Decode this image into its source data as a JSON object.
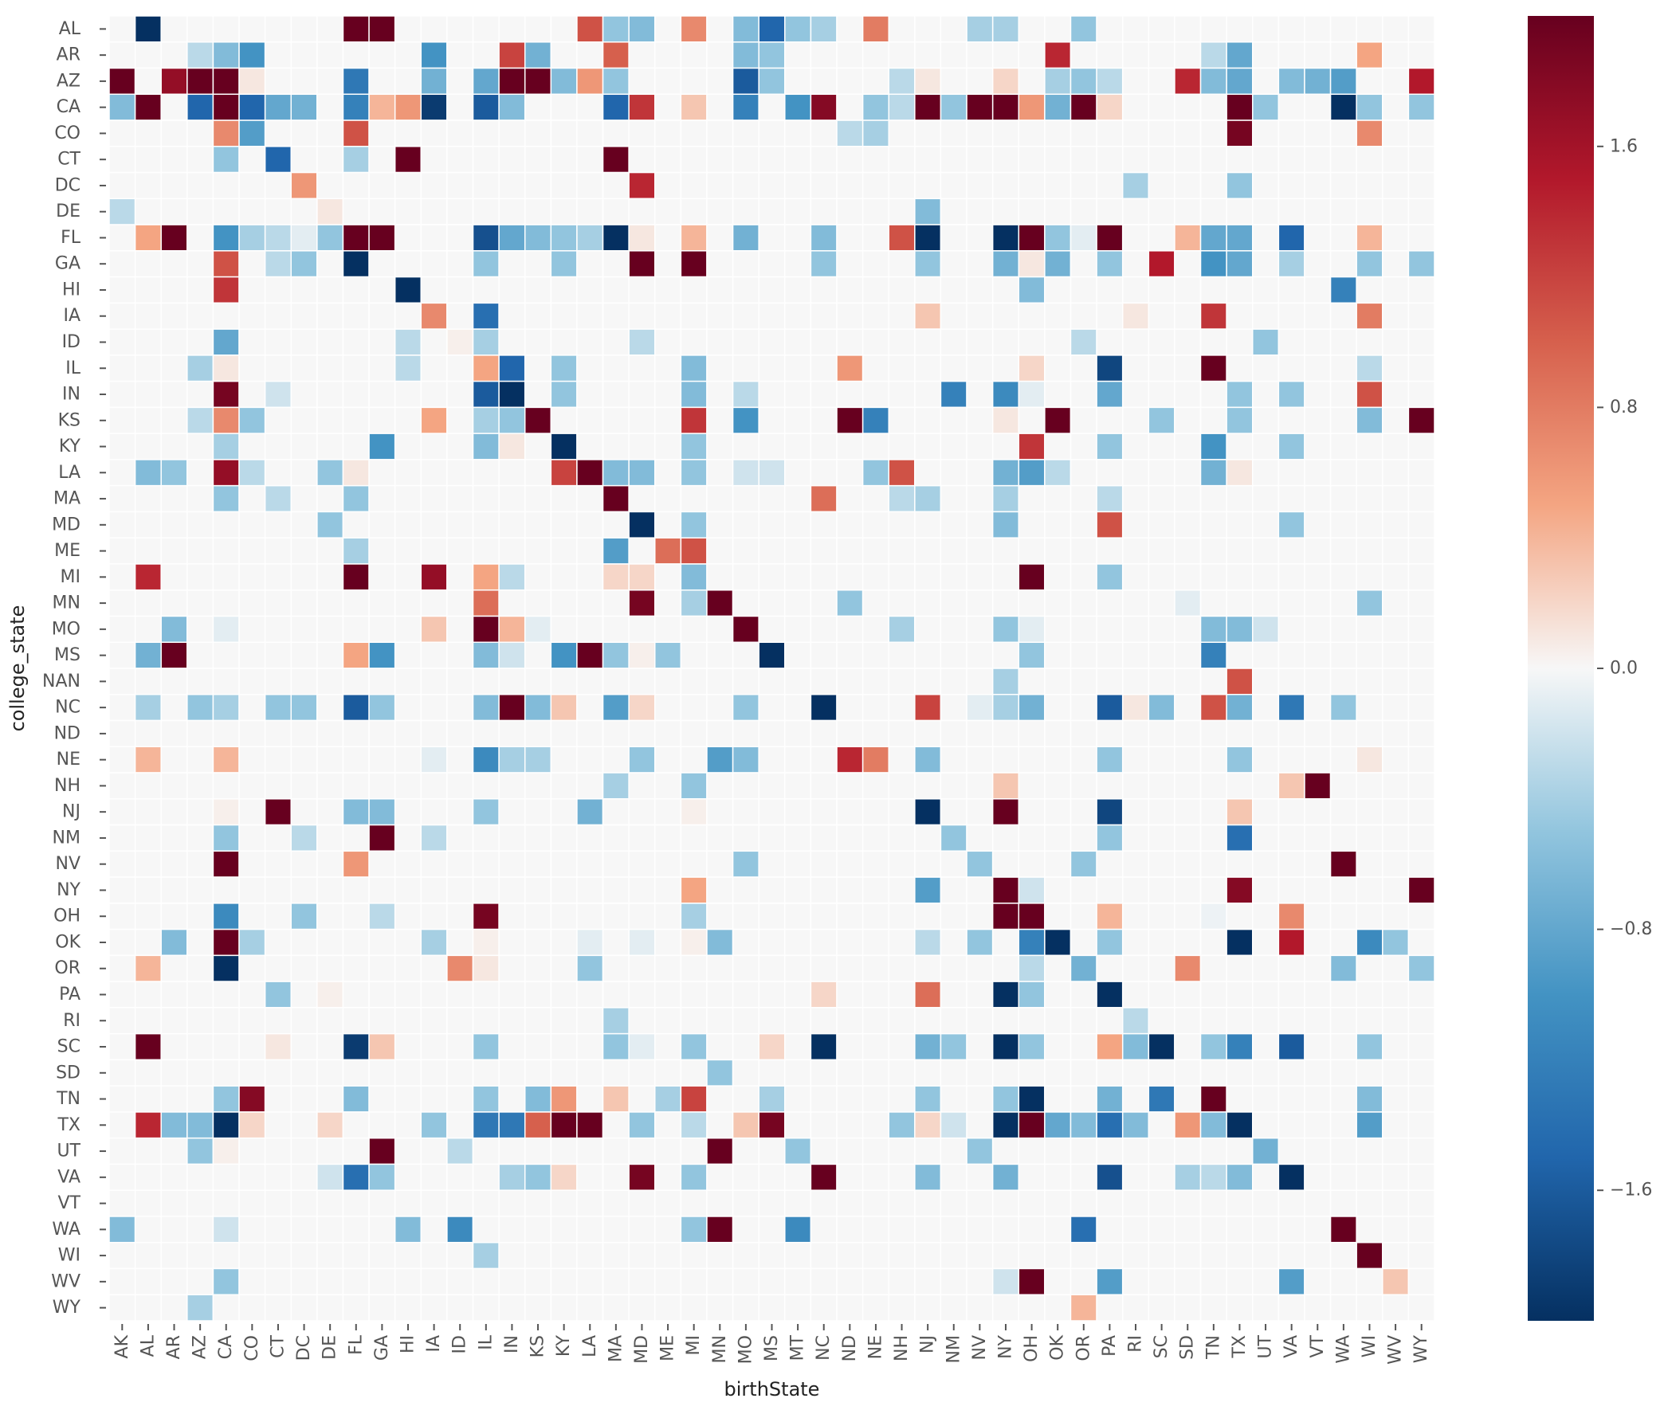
{
  "chart_data": {
    "type": "heatmap",
    "xlabel": "birthState",
    "ylabel": "college_state",
    "x_categories": [
      "AK",
      "AL",
      "AR",
      "AZ",
      "CA",
      "CO",
      "CT",
      "DC",
      "DE",
      "FL",
      "GA",
      "HI",
      "IA",
      "ID",
      "IL",
      "IN",
      "KS",
      "KY",
      "LA",
      "MA",
      "MD",
      "ME",
      "MI",
      "MN",
      "MO",
      "MS",
      "MT",
      "NC",
      "ND",
      "NE",
      "NH",
      "NJ",
      "NM",
      "NV",
      "NY",
      "OH",
      "OK",
      "OR",
      "PA",
      "RI",
      "SC",
      "SD",
      "TN",
      "TX",
      "UT",
      "VA",
      "VT",
      "WA",
      "WI",
      "WV",
      "WY"
    ],
    "y_categories": [
      "AL",
      "AR",
      "AZ",
      "CA",
      "CO",
      "CT",
      "DC",
      "DE",
      "FL",
      "GA",
      "HI",
      "IA",
      "ID",
      "IL",
      "IN",
      "KS",
      "KY",
      "LA",
      "MA",
      "MD",
      "ME",
      "MI",
      "MN",
      "MO",
      "MS",
      "NAN",
      "NC",
      "ND",
      "NE",
      "NH",
      "NJ",
      "NM",
      "NV",
      "NY",
      "OH",
      "OK",
      "OR",
      "PA",
      "RI",
      "SC",
      "SD",
      "TN",
      "TX",
      "UT",
      "VA",
      "VT",
      "WA",
      "WI",
      "WV",
      "WY"
    ],
    "vmin": -2.0,
    "vmax": 2.0,
    "colormap": "RdBu_r",
    "colorbar_ticks": [
      -1.6,
      -0.8,
      0.0,
      0.8,
      1.6
    ],
    "colorbar_tick_labels": [
      "−1.6",
      "−0.8",
      "0.0",
      "0.8",
      "1.6"
    ],
    "grid": false,
    "cell_border_color": "#ffffff",
    "cells": {
      "AL": {
        "AL": -2.2,
        "FL": 2.2,
        "GA": 2.2,
        "LA": 1.1,
        "MA": -0.5,
        "MD": -0.6,
        "MI": 0.7,
        "MO": -0.6,
        "MS": -1.5,
        "MT": -0.5,
        "NC": -0.4,
        "NE": 0.8,
        "NV": -0.4,
        "NY": -0.4,
        "OR": -0.5
      },
      "AR": {
        "AZ": -0.3,
        "CA": -0.6,
        "CO": -1.0,
        "IA": -1.0,
        "IN": 1.2,
        "KS": -0.7,
        "MA": 1.0,
        "MO": -0.6,
        "MS": -0.5,
        "OK": 1.4,
        "TN": -0.3,
        "TX": -0.8,
        "WI": 0.5
      },
      "AZ": {
        "AK": 2.2,
        "AR": 1.7,
        "AZ": 2.2,
        "CA": 2.2,
        "CO": 0.1,
        "FL": -1.3,
        "IA": -0.7,
        "IL": -0.8,
        "IN": 2.2,
        "KS": 2.2,
        "KY": -0.6,
        "LA": 0.6,
        "MA": -0.5,
        "MO": -1.6,
        "MS": -0.5,
        "NH": -0.3,
        "NJ": 0.1,
        "NY": 0.2,
        "OK": -0.4,
        "OR": -0.5,
        "PA": -0.3,
        "SD": 1.4,
        "TN": -0.6,
        "TX": -0.8,
        "VA": -0.6,
        "VT": -0.7,
        "WA": -0.9,
        "WY": 1.5
      },
      "CA": {
        "AK": -0.6,
        "AL": 2.2,
        "AZ": -1.5,
        "CA": 2.2,
        "CO": -1.5,
        "CT": -0.8,
        "DC": -0.7,
        "FL": -1.2,
        "GA": 0.4,
        "HI": 0.6,
        "IA": -1.9,
        "IL": -1.6,
        "IN": -0.6,
        "MA": -1.5,
        "MD": 1.3,
        "MI": 0.3,
        "MO": -1.2,
        "MT": -1.0,
        "NC": 1.8,
        "NE": -0.5,
        "NH": -0.3,
        "NJ": 2.2,
        "NM": -0.5,
        "NV": 2.2,
        "NY": 2.2,
        "OH": 0.6,
        "OK": -0.7,
        "OR": 2.2,
        "PA": 0.2,
        "TX": 2.2,
        "UT": -0.5,
        "WA": -2.2,
        "WI": -0.5,
        "WY": -0.5
      },
      "CO": {
        "CA": 0.7,
        "CO": -0.9,
        "FL": 1.1,
        "ND": -0.3,
        "NE": -0.4,
        "TX": 1.9,
        "WI": 0.7
      },
      "CT": {
        "CA": -0.5,
        "CT": -1.5,
        "FL": -0.4,
        "HI": 2.2,
        "MA": 2.2
      },
      "DC": {
        "DC": 0.6,
        "MD": 1.4,
        "RI": -0.4,
        "TX": -0.5
      },
      "DE": {
        "AK": -0.3,
        "DE": 0.1,
        "NJ": -0.6
      },
      "FL": {
        "AL": 0.5,
        "AR": 2.2,
        "CA": -1.0,
        "CO": -0.4,
        "CT": -0.3,
        "DC": -0.1,
        "DE": -0.5,
        "FL": 2.2,
        "GA": 2.2,
        "IL": -1.7,
        "IN": -0.8,
        "KS": -0.6,
        "KY": -0.5,
        "LA": -0.4,
        "MA": -2.2,
        "MD": 0.1,
        "MI": 0.4,
        "MO": -0.7,
        "NC": -0.6,
        "NH": 1.1,
        "NJ": -2.2,
        "NY": -2.2,
        "OH": 2.2,
        "OK": -0.5,
        "OR": -0.1,
        "PA": 2.2,
        "SD": 0.4,
        "TN": -0.8,
        "TX": -0.8,
        "VA": -1.5,
        "WI": 0.4
      },
      "GA": {
        "CA": 1.1,
        "CT": -0.3,
        "DC": -0.5,
        "FL": -2.2,
        "IL": -0.5,
        "KY": -0.5,
        "MD": 2.2,
        "MI": 2.0,
        "NC": -0.5,
        "NJ": -0.5,
        "NY": -0.7,
        "OH": 0.1,
        "OK": -0.7,
        "PA": -0.5,
        "SC": 1.5,
        "TN": -1.0,
        "TX": -0.8,
        "VA": -0.4,
        "WI": -0.5,
        "WY": -0.5
      },
      "HI": {
        "CA": 1.3,
        "HI": -2.2,
        "OH": -0.6,
        "WA": -1.2
      },
      "IA": {
        "IA": 0.7,
        "IL": -1.4,
        "NJ": 0.3,
        "RI": 0.1,
        "TN": 1.3,
        "WI": 0.8
      },
      "ID": {
        "CA": -0.8,
        "HI": -0.3,
        "ID": 0.05,
        "IL": -0.4,
        "MD": -0.3,
        "OR": -0.3,
        "UT": -0.5
      },
      "IL": {
        "AZ": -0.4,
        "CA": 0.1,
        "HI": -0.3,
        "IL": 0.5,
        "IN": -1.5,
        "KY": -0.5,
        "MI": -0.6,
        "ND": 0.6,
        "OH": 0.2,
        "PA": -1.8,
        "TN": 2.2,
        "WI": -0.3
      },
      "IN": {
        "CA": 1.9,
        "CT": -0.2,
        "IL": -1.6,
        "IN": -2.2,
        "KY": -0.5,
        "MI": -0.6,
        "MO": -0.3,
        "NM": -1.2,
        "NY": -1.1,
        "OH": -0.1,
        "PA": -0.8,
        "TX": -0.5,
        "VA": -0.5,
        "WI": 1.1
      },
      "KS": {
        "AZ": -0.3,
        "CA": 0.7,
        "CO": -0.5,
        "IA": 0.5,
        "IL": -0.4,
        "IN": -0.5,
        "KS": 2.2,
        "MI": 1.3,
        "MO": -1.0,
        "ND": 2.2,
        "NE": -1.2,
        "NY": 0.1,
        "OK": 2.2,
        "SC": -0.5,
        "TX": -0.5,
        "WI": -0.6,
        "WY": 2.2
      },
      "KY": {
        "CA": -0.4,
        "GA": -1.0,
        "IL": -0.6,
        "IN": 0.1,
        "KY": -2.2,
        "MI": -0.5,
        "OH": 1.3,
        "PA": -0.5,
        "TN": -1.0,
        "VA": -0.5
      },
      "LA": {
        "AL": -0.6,
        "AR": -0.5,
        "CA": 1.7,
        "CO": -0.3,
        "DE": -0.5,
        "FL": 0.1,
        "KY": 1.2,
        "LA": 2.2,
        "MA": -0.6,
        "MD": -0.6,
        "MI": -0.5,
        "MO": -0.2,
        "MS": -0.2,
        "NE": -0.5,
        "NH": 1.1,
        "NY": -0.7,
        "OH": -0.9,
        "OK": -0.3,
        "TN": -0.7,
        "TX": 0.1
      },
      "MA": {
        "CA": -0.5,
        "CT": -0.3,
        "FL": -0.5,
        "MA": 2.2,
        "NC": 0.9,
        "NH": -0.3,
        "NJ": -0.4,
        "NY": -0.4,
        "PA": -0.3
      },
      "MD": {
        "DE": -0.5,
        "MD": -2.2,
        "MI": -0.5,
        "NY": -0.6,
        "PA": 1.1,
        "VA": -0.5
      },
      "ME": {
        "FL": -0.4,
        "MA": -0.9,
        "ME": 0.9,
        "MI": 1.1
      },
      "MI": {
        "AL": 1.4,
        "FL": 2.2,
        "IA": 1.7,
        "IL": 0.5,
        "IN": -0.3,
        "MA": 0.2,
        "MD": 0.2,
        "MI": -0.6,
        "OH": 2.2,
        "PA": -0.5
      },
      "MN": {
        "IL": 0.9,
        "MD": 1.9,
        "MI": -0.4,
        "MN": 2.2,
        "ND": -0.5,
        "SD": -0.1,
        "WI": -0.5
      },
      "MO": {
        "AR": -0.6,
        "CA": -0.1,
        "IA": 0.3,
        "IL": 2.2,
        "IN": 0.4,
        "KS": -0.1,
        "MO": 2.2,
        "NH": -0.4,
        "NY": -0.5,
        "OH": -0.1,
        "TX": -0.6,
        "TN": -0.6,
        "UT": -0.2
      },
      "MS": {
        "AL": -0.7,
        "AR": 2.2,
        "FL": 0.5,
        "GA": -1.0,
        "IL": -0.6,
        "IN": -0.2,
        "KY": -1.0,
        "LA": 2.2,
        "MA": -0.5,
        "MD": 0.05,
        "ME": -0.5,
        "MS": -2.2,
        "OH": -0.5,
        "TN": -1.2
      },
      "NAN": {
        "NY": -0.4,
        "TX": 1.1
      },
      "NC": {
        "AL": -0.4,
        "AZ": -0.5,
        "CA": -0.4,
        "CT": -0.5,
        "DC": -0.5,
        "FL": -1.6,
        "GA": -0.5,
        "IL": -0.6,
        "IN": 2.2,
        "KS": -0.6,
        "KY": 0.3,
        "MA": -0.9,
        "MD": 0.2,
        "MO": -0.5,
        "NC": -2.2,
        "NJ": 1.2,
        "NV": -0.1,
        "NY": -0.4,
        "OH": -0.7,
        "PA": -1.6,
        "RI": 0.1,
        "SC": -0.6,
        "TN": 1.1,
        "TX": -0.7,
        "VA": -1.3,
        "WA": -0.5
      },
      "ND": {},
      "NE": {
        "AL": 0.4,
        "CA": 0.4,
        "IA": -0.1,
        "IL": -1.1,
        "IN": -0.4,
        "KS": -0.4,
        "MD": -0.5,
        "MN": -0.9,
        "MO": -0.6,
        "ND": 1.4,
        "NE": 0.8,
        "NJ": -0.6,
        "PA": -0.5,
        "TX": -0.5,
        "WI": 0.1
      },
      "NH": {
        "MA": -0.4,
        "MI": -0.5,
        "NY": 0.3,
        "VA": 0.3,
        "VT": 2.2
      },
      "NJ": {
        "CA": 0.05,
        "CT": 2.2,
        "FL": -0.6,
        "GA": -0.6,
        "IL": -0.5,
        "LA": -0.7,
        "MI": 0.05,
        "NJ": -2.2,
        "NY": 2.2,
        "PA": -1.8,
        "TX": 0.3
      },
      "NM": {
        "CA": -0.5,
        "DC": -0.3,
        "GA": 2.2,
        "IA": -0.3,
        "NM": -0.5,
        "PA": -0.5,
        "TX": -1.4
      },
      "NV": {
        "CA": 2.2,
        "FL": 0.6,
        "MO": -0.5,
        "NV": -0.5,
        "OR": -0.5,
        "WA": 2.2
      },
      "NY": {
        "MI": 0.5,
        "NJ": -0.9,
        "NY": 2.2,
        "OH": -0.2,
        "TX": 1.8,
        "WY": 2.2
      },
      "OH": {
        "CA": -1.1,
        "DC": -0.5,
        "GA": -0.3,
        "IL": 1.9,
        "MI": -0.4,
        "NY": 2.2,
        "OH": 2.2,
        "PA": 0.4,
        "TN": -0.05,
        "VA": 0.7
      },
      "OK": {
        "AR": -0.6,
        "CA": 2.2,
        "CO": -0.4,
        "IA": -0.4,
        "IL": 0.05,
        "LA": -0.1,
        "MD": -0.1,
        "MI": 0.05,
        "MN": -0.6,
        "NJ": -0.3,
        "NV": -0.5,
        "OH": -1.2,
        "OK": -2.2,
        "PA": -0.5,
        "TX": -2.2,
        "VA": 1.5,
        "WI": -1.1,
        "WV": -0.5
      },
      "OR": {
        "AL": 0.4,
        "CA": -2.2,
        "ID": 0.7,
        "IL": 0.1,
        "LA": -0.5,
        "OH": -0.3,
        "OR": -0.7,
        "SD": 0.7,
        "WA": -0.6,
        "WY": -0.5
      },
      "PA": {
        "CT": -0.5,
        "DE": 0.05,
        "NC": 0.2,
        "NJ": 0.9,
        "NY": -2.2,
        "OH": -0.5,
        "PA": -2.2
      },
      "RI": {
        "MA": -0.4,
        "RI": -0.3
      },
      "SC": {
        "AL": 2.2,
        "CT": 0.1,
        "FL": -1.9,
        "GA": 0.3,
        "IL": -0.5,
        "MA": -0.5,
        "MD": -0.1,
        "MI": -0.5,
        "MS": 0.2,
        "NC": -2.2,
        "NJ": -0.7,
        "NM": -0.5,
        "NY": -2.2,
        "OH": -0.5,
        "PA": 0.5,
        "RI": -0.6,
        "SC": -2.2,
        "TN": -0.5,
        "TX": -1.2,
        "VA": -1.6,
        "WI": -0.5
      },
      "SD": {
        "MN": -0.5
      },
      "TN": {
        "CA": -0.5,
        "CO": 1.8,
        "FL": -0.6,
        "IL": -0.5,
        "KS": -0.6,
        "KY": 0.6,
        "MA": 0.3,
        "ME": -0.4,
        "MI": 1.2,
        "MS": -0.4,
        "NJ": -0.5,
        "NY": -0.5,
        "OH": -2.2,
        "PA": -0.7,
        "SC": -1.3,
        "TN": 2.2,
        "WI": -0.6
      },
      "TX": {
        "AL": 1.4,
        "AR": -0.6,
        "AZ": -0.6,
        "CA": -2.2,
        "CO": 0.2,
        "DE": 0.2,
        "IA": -0.5,
        "IL": -1.3,
        "IN": -1.3,
        "KS": 1.0,
        "KY": 2.2,
        "LA": 2.2,
        "MD": -0.5,
        "MI": -0.3,
        "MO": 0.3,
        "MS": 1.9,
        "NH": -0.5,
        "NJ": 0.2,
        "NM": -0.2,
        "NY": -2.2,
        "OH": 2.2,
        "OK": -0.8,
        "OR": -0.6,
        "PA": -1.4,
        "RI": -0.6,
        "SD": 0.6,
        "TN": -0.6,
        "TX": -2.2,
        "WI": -0.9
      },
      "UT": {
        "AZ": -0.5,
        "CA": 0.05,
        "GA": 2.2,
        "ID": -0.3,
        "MN": 2.2,
        "MT": -0.5,
        "NV": -0.5,
        "UT": -0.7
      },
      "VA": {
        "DE": -0.2,
        "FL": -1.4,
        "GA": -0.5,
        "IN": -0.4,
        "KS": -0.5,
        "KY": 0.2,
        "MD": 1.9,
        "MI": -0.5,
        "NC": 2.2,
        "NJ": -0.6,
        "NY": -0.7,
        "PA": -1.7,
        "SD": -0.4,
        "TN": -0.3,
        "TX": -0.6,
        "VA": -2.2
      },
      "VT": {},
      "WA": {
        "AK": -0.6,
        "CA": -0.2,
        "HI": -0.6,
        "ID": -1.1,
        "MI": -0.5,
        "MN": 2.2,
        "MT": -1.1,
        "OR": -1.4,
        "WA": 2.2
      },
      "WI": {
        "IL": -0.4,
        "WI": 2.2
      },
      "WV": {
        "CA": -0.5,
        "NY": -0.2,
        "OH": 2.2,
        "PA": -0.9,
        "VA": -0.9,
        "WV": 0.3
      },
      "WY": {
        "AZ": -0.4,
        "OR": 0.4
      }
    }
  }
}
